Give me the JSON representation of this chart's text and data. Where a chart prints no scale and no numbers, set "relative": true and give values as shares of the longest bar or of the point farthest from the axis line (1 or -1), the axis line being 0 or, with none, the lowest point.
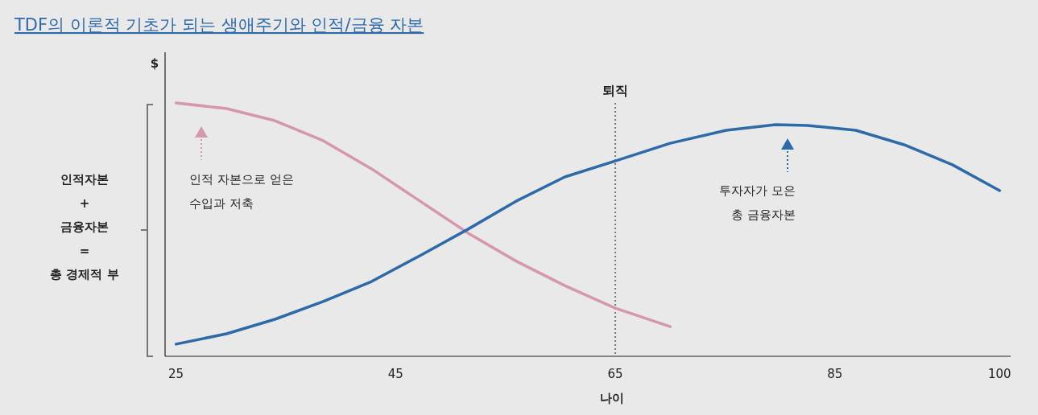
{
  "chart_data": {
    "type": "line",
    "title": "TDF의 이론적 기초가 되는 생애주기와 인적/금융 자본",
    "xlabel": "나이",
    "ylabel": "$",
    "relative": true,
    "grid": false,
    "marker": "none",
    "line_style": "solid",
    "xlim": [
      24,
      101
    ],
    "xticks": [
      25,
      45,
      65,
      85,
      100
    ],
    "series": [
      {
        "color": "#d597ab",
        "x": [
          25,
          29.6,
          34,
          38.4,
          42.8,
          47.2,
          51.6,
          56,
          60.4,
          65,
          70
        ],
        "values": [
          1,
          0.978,
          0.93,
          0.851,
          0.74,
          0.613,
          0.486,
          0.375,
          0.279,
          0.19,
          0.117
        ]
      },
      {
        "color": "#2e6aa8",
        "x": [
          25,
          29.6,
          34,
          38.4,
          42.8,
          47.2,
          51.6,
          56,
          60.4,
          65,
          70,
          75.1,
          79.6,
          82.5,
          86.9,
          91.3,
          95.7,
          100
        ],
        "values": [
          0.048,
          0.089,
          0.146,
          0.216,
          0.295,
          0.397,
          0.502,
          0.613,
          0.708,
          0.771,
          0.841,
          0.892,
          0.914,
          0.911,
          0.892,
          0.835,
          0.756,
          0.654
        ]
      }
    ],
    "ref_lines": [
      {
        "axis": "x",
        "value": 65,
        "label": "퇴직",
        "color": "#777777",
        "line_style": "dotted"
      }
    ],
    "annotations": [
      "인적 자본으로 얻은\n수입과 저축",
      "투자자가 모은\n총 금융자본",
      "인적자본\n+\n금융자본\n=\n총 경제적 부"
    ]
  }
}
